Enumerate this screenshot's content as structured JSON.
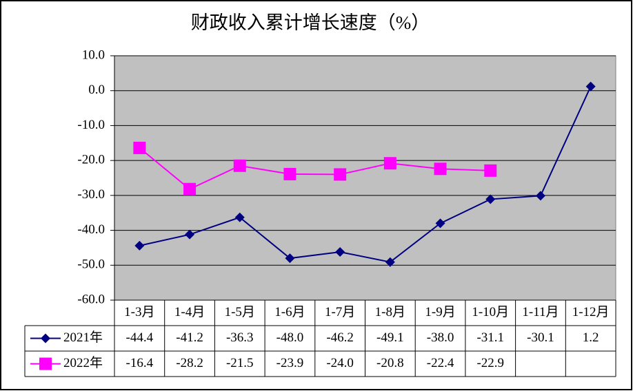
{
  "chart_data": {
    "type": "line",
    "title": "财政收入累计增长速度（%）",
    "categories": [
      "1-3月",
      "1-4月",
      "1-5月",
      "1-6月",
      "1-7月",
      "1-8月",
      "1-9月",
      "1-10月",
      "1-11月",
      "1-12月"
    ],
    "series": [
      {
        "name": "2021年",
        "color": "#000080",
        "marker": "diamond",
        "values": [
          -44.4,
          -41.2,
          -36.3,
          -48.0,
          -46.2,
          -49.1,
          -38.0,
          -31.1,
          -30.1,
          1.2
        ],
        "value_labels": [
          "-44.4",
          "-41.2",
          "-36.3",
          "-48.0",
          "-46.2",
          "-49.1",
          "-38.0",
          "-31.1",
          "-30.1",
          "1.2"
        ]
      },
      {
        "name": "2022年",
        "color": "#ff00ff",
        "marker": "square",
        "values": [
          -16.4,
          -28.2,
          -21.5,
          -23.9,
          -24.0,
          -20.8,
          -22.4,
          -22.9,
          null,
          null
        ],
        "value_labels": [
          "-16.4",
          "-28.2",
          "-21.5",
          "-23.9",
          "-24.0",
          "-20.8",
          "-22.4",
          "-22.9",
          null,
          null
        ]
      }
    ],
    "ylim": [
      -60,
      10
    ],
    "yticks": [
      {
        "value": 10,
        "label": "10.0"
      },
      {
        "value": 0,
        "label": "0.0"
      },
      {
        "value": -10,
        "label": "-10.0"
      },
      {
        "value": -20,
        "label": "-20.0"
      },
      {
        "value": -30,
        "label": "-30.0"
      },
      {
        "value": -40,
        "label": "-40.0"
      },
      {
        "value": -50,
        "label": "-50.0"
      },
      {
        "value": -60,
        "label": "-60.0"
      }
    ],
    "grid": true,
    "plot_background": "#c0c0c0"
  }
}
